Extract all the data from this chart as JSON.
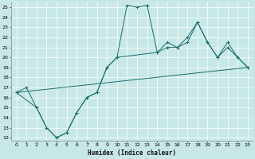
{
  "xlabel": "Humidex (Indice chaleur)",
  "xlim": [
    -0.5,
    23.5
  ],
  "ylim": [
    11.7,
    25.5
  ],
  "xticks": [
    0,
    1,
    2,
    3,
    4,
    5,
    6,
    7,
    8,
    9,
    10,
    11,
    12,
    13,
    14,
    15,
    16,
    17,
    18,
    19,
    20,
    21,
    22,
    23
  ],
  "yticks": [
    12,
    13,
    14,
    15,
    16,
    17,
    18,
    19,
    20,
    21,
    22,
    23,
    24,
    25
  ],
  "bg_color": "#c8e8e8",
  "line_color": "#1a6b6b",
  "line1_x": [
    0,
    1,
    2,
    3,
    4,
    5,
    6,
    7,
    8,
    9,
    10,
    11,
    12,
    13,
    14,
    15,
    16,
    17,
    18,
    19,
    20,
    21,
    22,
    23
  ],
  "line1_y": [
    16.5,
    17.0,
    15.0,
    13.0,
    12.0,
    12.5,
    14.5,
    16.0,
    16.5,
    19.0,
    20.0,
    25.2,
    25.0,
    25.2,
    20.5,
    21.5,
    21.0,
    22.0,
    23.5,
    21.5,
    20.0,
    21.0,
    20.0,
    19.0
  ],
  "line2_x": [
    0,
    2,
    3,
    4,
    5,
    6,
    7,
    8,
    9,
    10,
    14,
    15,
    16,
    17,
    18,
    19,
    20,
    21,
    22,
    23
  ],
  "line2_y": [
    16.5,
    15.0,
    13.0,
    12.0,
    12.5,
    14.5,
    16.0,
    16.5,
    19.0,
    20.0,
    20.5,
    21.0,
    21.0,
    21.5,
    23.5,
    21.5,
    20.0,
    21.5,
    20.0,
    19.0
  ],
  "line3_x": [
    0,
    23
  ],
  "line3_y": [
    16.5,
    19.0
  ]
}
